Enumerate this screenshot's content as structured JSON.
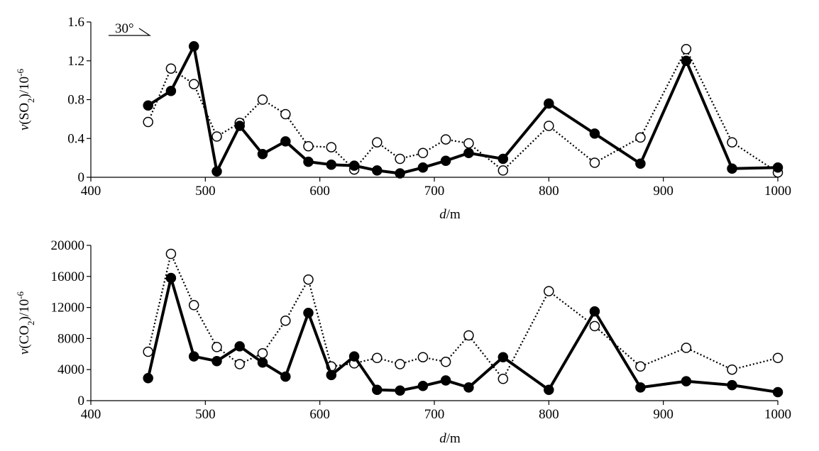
{
  "chart_data": [
    {
      "type": "line",
      "title": "",
      "xlabel": "d/m",
      "ylabel": "v(SO2)/10-6",
      "xlim": [
        400,
        1000
      ],
      "ylim": [
        0,
        1.6
      ],
      "x_ticks": [
        "400",
        "500",
        "600",
        "700",
        "800",
        "900",
        "1000"
      ],
      "y_ticks": [
        "0",
        "0.4",
        "0.8",
        "1.2",
        "1.6"
      ],
      "annotation": "30°",
      "series": [
        {
          "style": "solid-filled",
          "x": [
            450,
            470,
            490,
            510,
            530,
            550,
            570,
            590,
            610,
            630,
            650,
            670,
            690,
            710,
            730,
            760,
            800,
            840,
            880,
            920,
            960,
            1000
          ],
          "y": [
            0.74,
            0.89,
            1.35,
            0.06,
            0.53,
            0.24,
            0.37,
            0.16,
            0.13,
            0.12,
            0.07,
            0.04,
            0.1,
            0.17,
            0.25,
            0.19,
            0.76,
            0.45,
            0.14,
            1.2,
            0.09,
            0.1
          ]
        },
        {
          "style": "dotted-open",
          "x": [
            450,
            470,
            490,
            510,
            530,
            550,
            570,
            590,
            610,
            630,
            650,
            670,
            690,
            710,
            730,
            760,
            800,
            840,
            880,
            920,
            960,
            1000
          ],
          "y": [
            0.57,
            1.12,
            0.96,
            0.42,
            0.56,
            0.8,
            0.65,
            0.32,
            0.31,
            0.08,
            0.36,
            0.19,
            0.25,
            0.39,
            0.35,
            0.07,
            0.53,
            0.15,
            0.41,
            1.32,
            0.36,
            0.05
          ]
        }
      ]
    },
    {
      "type": "line",
      "title": "",
      "xlabel": "d/m",
      "ylabel": "v(CO2)/10-6",
      "xlim": [
        400,
        1000
      ],
      "ylim": [
        0,
        20000
      ],
      "x_ticks": [
        "400",
        "500",
        "600",
        "700",
        "800",
        "900",
        "1000"
      ],
      "y_ticks": [
        "0",
        "4000",
        "8000",
        "12000",
        "16000",
        "20000"
      ],
      "series": [
        {
          "style": "solid-filled",
          "x": [
            450,
            470,
            490,
            510,
            530,
            550,
            570,
            590,
            610,
            630,
            650,
            670,
            690,
            710,
            730,
            760,
            800,
            840,
            880,
            920,
            960,
            1000
          ],
          "y": [
            2900,
            15800,
            5700,
            5100,
            7000,
            4900,
            3100,
            11300,
            3300,
            5700,
            1400,
            1300,
            1900,
            2600,
            1700,
            5600,
            1400,
            11500,
            1700,
            2500,
            2000,
            1100
          ]
        },
        {
          "style": "dotted-open",
          "x": [
            450,
            470,
            490,
            510,
            530,
            550,
            570,
            590,
            610,
            630,
            650,
            670,
            690,
            710,
            730,
            760,
            800,
            840,
            880,
            920,
            960,
            1000
          ],
          "y": [
            6300,
            18900,
            12300,
            6900,
            4700,
            6100,
            10300,
            15600,
            4400,
            4800,
            5500,
            4700,
            5600,
            5000,
            8400,
            2800,
            14100,
            9600,
            4400,
            6800,
            4000,
            5500
          ]
        }
      ]
    }
  ]
}
